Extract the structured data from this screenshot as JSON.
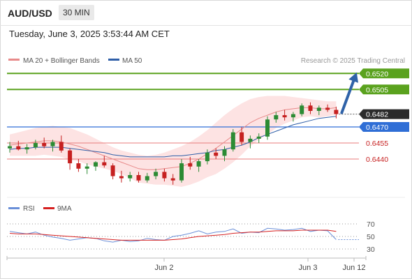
{
  "header": {
    "symbol": "AUD/USD",
    "timeframe": "30 MIN",
    "datetime": "Tuesday, June 3, 2025 3:53:44 AM CET"
  },
  "legend": {
    "ma20_label": "MA 20 + Bollinger Bands",
    "ma50_label": "MA 50",
    "copyright": "Research © 2025 Trading Central",
    "rsi_label": "RSI",
    "rsi_ma_label": "9MA"
  },
  "colors": {
    "bull_candle": "#2c8b34",
    "bear_candle": "#c62020",
    "ma20": "#e88a8a",
    "ma50": "#2f5fa8",
    "bollinger_fill": "#fde3e3",
    "resistance_line": "#5aa21e",
    "support_blue": "#2f6ed6",
    "support_red": "#e87b7b",
    "arrow": "#2f62a8",
    "rsi": "#6a8fd8",
    "rsi_ma": "#d62020"
  },
  "chart_data": [
    {
      "type": "candlestick",
      "title": "AUD/USD 30 MIN",
      "ylim": [
        0.6412,
        0.6532
      ],
      "x_ticks": [
        "Jun 2",
        "Jun 3",
        "Jun 12"
      ],
      "levels": [
        {
          "value": 0.652,
          "label": "0.6520",
          "role": "target"
        },
        {
          "value": 0.6505,
          "label": "0.6505",
          "role": "resistance"
        },
        {
          "value": 0.6482,
          "label": "0.6482",
          "role": "last_price"
        },
        {
          "value": 0.647,
          "label": "0.6470",
          "role": "pivot"
        },
        {
          "value": 0.6455,
          "label": "0.6455",
          "role": "support"
        },
        {
          "value": 0.644,
          "label": "0.6440",
          "role": "support"
        }
      ],
      "series": [
        {
          "name": "MA 20 + Bollinger Bands",
          "values": [
            0.6453,
            0.6454,
            0.6455,
            0.6456,
            0.6457,
            0.6457,
            0.6456,
            0.6454,
            0.6452,
            0.6449,
            0.6446,
            0.6443,
            0.644,
            0.6437,
            0.6434,
            0.6431,
            0.643,
            0.643,
            0.6431,
            0.6432,
            0.6433,
            0.6436,
            0.644,
            0.6445,
            0.645,
            0.6456,
            0.6462,
            0.6468,
            0.6474,
            0.6478,
            0.6481,
            0.6484,
            0.6486,
            0.6487,
            0.6488,
            0.6488,
            0.6487,
            0.6487,
            0.6488
          ]
        },
        {
          "name": "MA 50",
          "values": [
            0.6449,
            0.645,
            0.645,
            0.6451,
            0.6451,
            0.6451,
            0.6451,
            0.645,
            0.6449,
            0.6448,
            0.6447,
            0.6446,
            0.6444,
            0.6443,
            0.6442,
            0.6442,
            0.6442,
            0.6442,
            0.6442,
            0.6443,
            0.6443,
            0.6444,
            0.6445,
            0.6446,
            0.6448,
            0.6449,
            0.6451,
            0.6453,
            0.6456,
            0.646,
            0.6463,
            0.6466,
            0.6469,
            0.6472,
            0.6474,
            0.6476,
            0.6478,
            0.6479,
            0.648
          ]
        }
      ],
      "bollinger_upper": [
        0.6463,
        0.6465,
        0.6467,
        0.6469,
        0.647,
        0.6471,
        0.647,
        0.6469,
        0.6466,
        0.6463,
        0.6459,
        0.6455,
        0.6451,
        0.6448,
        0.6446,
        0.6444,
        0.6443,
        0.6444,
        0.6446,
        0.6449,
        0.6452,
        0.6456,
        0.6461,
        0.6467,
        0.6474,
        0.6481,
        0.6487,
        0.6492,
        0.6496,
        0.6498,
        0.6499,
        0.6499,
        0.6499,
        0.6498,
        0.6497,
        0.6496,
        0.6495,
        0.6494,
        0.6494
      ],
      "bollinger_lower": [
        0.6443,
        0.6443,
        0.6443,
        0.6443,
        0.6444,
        0.6443,
        0.6442,
        0.6439,
        0.6438,
        0.6435,
        0.6433,
        0.6431,
        0.6429,
        0.6426,
        0.6422,
        0.6418,
        0.6417,
        0.6416,
        0.6416,
        0.6415,
        0.6414,
        0.6416,
        0.6419,
        0.6423,
        0.6426,
        0.6431,
        0.6437,
        0.6444,
        0.6452,
        0.6458,
        0.6463,
        0.6469,
        0.6473,
        0.6476,
        0.6479,
        0.648,
        0.6479,
        0.648,
        0.6482
      ],
      "candles": [
        {
          "o": 0.645,
          "h": 0.6456,
          "l": 0.6446,
          "c": 0.6452
        },
        {
          "o": 0.6452,
          "h": 0.6457,
          "l": 0.6448,
          "c": 0.6449
        },
        {
          "o": 0.6449,
          "h": 0.6454,
          "l": 0.6445,
          "c": 0.6451
        },
        {
          "o": 0.6451,
          "h": 0.6458,
          "l": 0.6449,
          "c": 0.6455
        },
        {
          "o": 0.6455,
          "h": 0.646,
          "l": 0.645,
          "c": 0.6452
        },
        {
          "o": 0.6452,
          "h": 0.6458,
          "l": 0.6447,
          "c": 0.6456
        },
        {
          "o": 0.6456,
          "h": 0.6462,
          "l": 0.6446,
          "c": 0.6448
        },
        {
          "o": 0.6448,
          "h": 0.645,
          "l": 0.643,
          "c": 0.6436
        },
        {
          "o": 0.6436,
          "h": 0.644,
          "l": 0.6428,
          "c": 0.6431
        },
        {
          "o": 0.6431,
          "h": 0.6436,
          "l": 0.6426,
          "c": 0.6433
        },
        {
          "o": 0.6433,
          "h": 0.6438,
          "l": 0.6429,
          "c": 0.6437
        },
        {
          "o": 0.6437,
          "h": 0.6443,
          "l": 0.6432,
          "c": 0.6434
        },
        {
          "o": 0.6434,
          "h": 0.6436,
          "l": 0.6421,
          "c": 0.6424
        },
        {
          "o": 0.6424,
          "h": 0.6429,
          "l": 0.6418,
          "c": 0.6422
        },
        {
          "o": 0.6422,
          "h": 0.6428,
          "l": 0.6419,
          "c": 0.6425
        },
        {
          "o": 0.6425,
          "h": 0.6428,
          "l": 0.6418,
          "c": 0.642
        },
        {
          "o": 0.642,
          "h": 0.6427,
          "l": 0.6418,
          "c": 0.6424
        },
        {
          "o": 0.6424,
          "h": 0.6431,
          "l": 0.6421,
          "c": 0.6428
        },
        {
          "o": 0.6428,
          "h": 0.6431,
          "l": 0.6419,
          "c": 0.6422
        },
        {
          "o": 0.6422,
          "h": 0.6426,
          "l": 0.6416,
          "c": 0.642
        },
        {
          "o": 0.642,
          "h": 0.644,
          "l": 0.6418,
          "c": 0.6436
        },
        {
          "o": 0.6436,
          "h": 0.6442,
          "l": 0.643,
          "c": 0.6433
        },
        {
          "o": 0.6433,
          "h": 0.644,
          "l": 0.6428,
          "c": 0.6438
        },
        {
          "o": 0.6438,
          "h": 0.6449,
          "l": 0.6435,
          "c": 0.6446
        },
        {
          "o": 0.6446,
          "h": 0.645,
          "l": 0.644,
          "c": 0.6443
        },
        {
          "o": 0.6443,
          "h": 0.6452,
          "l": 0.6438,
          "c": 0.6449
        },
        {
          "o": 0.6449,
          "h": 0.6468,
          "l": 0.6447,
          "c": 0.6465
        },
        {
          "o": 0.6465,
          "h": 0.647,
          "l": 0.6453,
          "c": 0.6456
        },
        {
          "o": 0.6456,
          "h": 0.6462,
          "l": 0.645,
          "c": 0.6459
        },
        {
          "o": 0.6459,
          "h": 0.6464,
          "l": 0.6455,
          "c": 0.6461
        },
        {
          "o": 0.6461,
          "h": 0.648,
          "l": 0.6458,
          "c": 0.6477
        },
        {
          "o": 0.6477,
          "h": 0.6484,
          "l": 0.6474,
          "c": 0.6481
        },
        {
          "o": 0.6481,
          "h": 0.6486,
          "l": 0.6476,
          "c": 0.6479
        },
        {
          "o": 0.6479,
          "h": 0.6484,
          "l": 0.6475,
          "c": 0.6482
        },
        {
          "o": 0.6482,
          "h": 0.6492,
          "l": 0.648,
          "c": 0.649
        },
        {
          "o": 0.649,
          "h": 0.6493,
          "l": 0.6482,
          "c": 0.6485
        },
        {
          "o": 0.6485,
          "h": 0.649,
          "l": 0.6481,
          "c": 0.6488
        },
        {
          "o": 0.6488,
          "h": 0.6491,
          "l": 0.6484,
          "c": 0.6486
        },
        {
          "o": 0.6486,
          "h": 0.6489,
          "l": 0.6478,
          "c": 0.6482
        }
      ]
    },
    {
      "type": "line",
      "title": "RSI",
      "ylim": [
        25,
        75
      ],
      "y_ticks": [
        30,
        50,
        70
      ],
      "series": [
        {
          "name": "RSI",
          "values": [
            58,
            56,
            54,
            57,
            52,
            49,
            47,
            44,
            46,
            48,
            47,
            43,
            41,
            44,
            42,
            43,
            47,
            45,
            44,
            50,
            52,
            55,
            59,
            54,
            57,
            58,
            62,
            55,
            57,
            56,
            63,
            62,
            60,
            61,
            63,
            58,
            60,
            59,
            45
          ]
        },
        {
          "name": "9MA",
          "values": [
            55,
            54,
            54,
            54,
            53,
            52,
            51,
            50,
            49,
            48,
            47,
            46,
            45,
            44,
            44,
            44,
            44,
            44,
            44,
            45,
            46,
            48,
            50,
            51,
            52,
            53,
            55,
            56,
            57,
            57,
            58,
            59,
            59,
            59,
            60,
            60,
            60,
            60,
            58
          ]
        }
      ]
    }
  ]
}
